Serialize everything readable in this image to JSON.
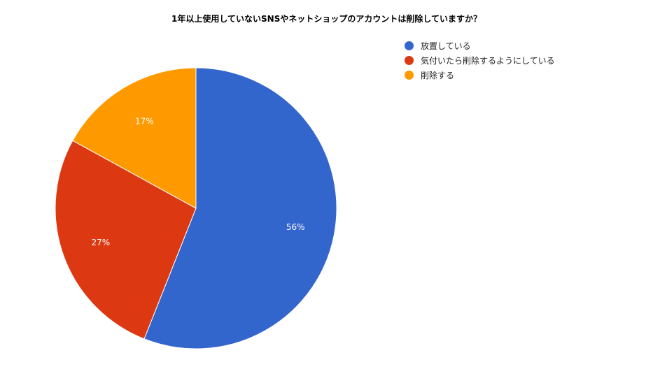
{
  "chart_data": {
    "type": "pie",
    "title": "1年以上使用していないSNSやネットショップのアカウントは削除していますか？",
    "categories": [
      "放置している",
      "気付いたら削除するようにしている",
      "削除する"
    ],
    "values": [
      56,
      27,
      17
    ],
    "data_labels": [
      "56%",
      "27%",
      "17%"
    ],
    "colors": [
      "#3366cc",
      "#dc3912",
      "#ff9900"
    ],
    "legend": "right"
  }
}
